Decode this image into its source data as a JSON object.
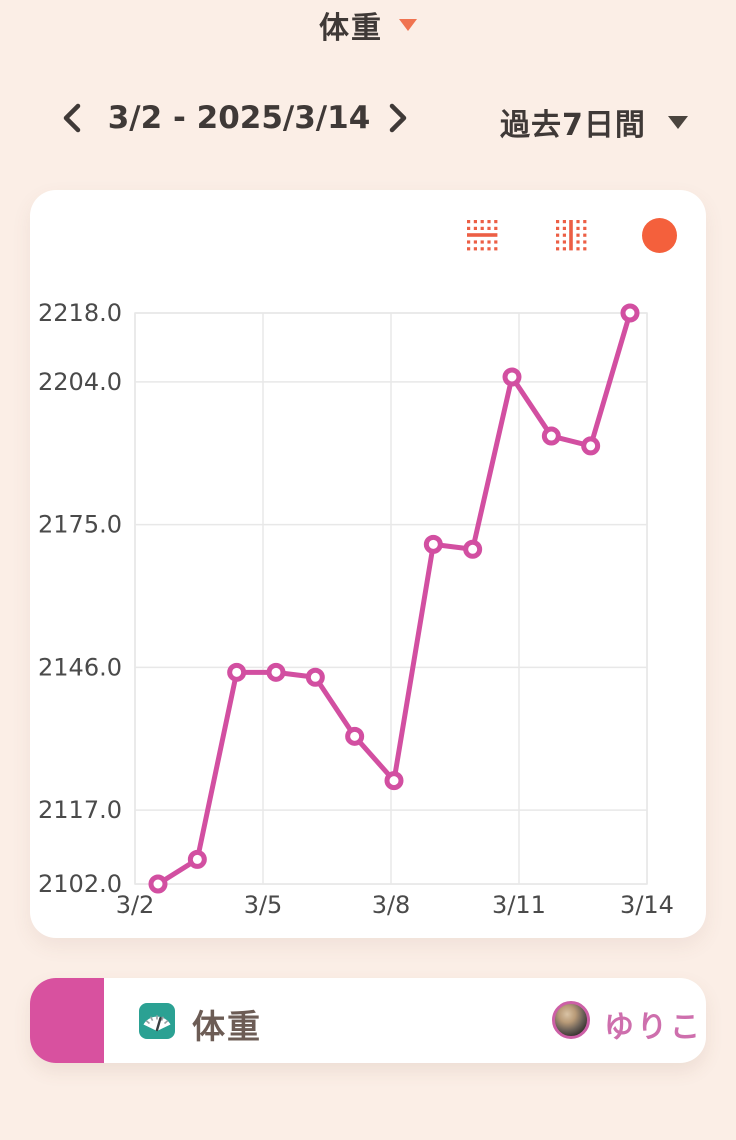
{
  "header": {
    "title": "体重"
  },
  "nav": {
    "date_range": "3/2 - 2025/3/14",
    "period_label": "過去7日間"
  },
  "toolbar": {
    "icons": [
      "horizontal-gridlines-icon",
      "vertical-gridlines-icon",
      "series-color-dot"
    ],
    "series_dot_color": "#F4603C"
  },
  "chart_data": {
    "type": "line",
    "title": "体重",
    "x": [
      "3/2",
      "3/3",
      "3/4",
      "3/5",
      "3/6",
      "3/7",
      "3/8",
      "3/9",
      "3/10",
      "3/11",
      "3/12",
      "3/13",
      "3/14"
    ],
    "series": [
      {
        "name": "体重",
        "color": "#D24FA1",
        "values": [
          2102,
          2107,
          2145,
          2145,
          2144,
          2132,
          2123,
          2171,
          2170,
          2205,
          2193,
          2191,
          2218
        ]
      }
    ],
    "x_tick_labels": [
      "3/2",
      "3/5",
      "3/8",
      "3/11",
      "3/14"
    ],
    "y_ticks": [
      2102,
      2117,
      2146,
      2175,
      2204,
      2218
    ],
    "y_tick_labels": [
      "2102.0",
      "2117.0",
      "2146.0",
      "2175.0",
      "2204.0",
      "2218.0"
    ],
    "ylim": [
      2102,
      2218
    ],
    "grid": true,
    "legend_position": "none",
    "marker": "open-circle"
  },
  "footer": {
    "metric_label": "体重",
    "metric_icon": "weight-scale-icon",
    "user_name": "ゆりこ",
    "avatar": "cat-photo-avatar",
    "accent_color": "#D8519F"
  },
  "colors": {
    "background": "#FBEEE6",
    "card": "#FFFFFF",
    "line_pink": "#D24FA1",
    "accent_orange": "#EC5F45",
    "grid": "#E8E8E8",
    "text_dark": "#3F3937",
    "tick_text": "#4A4A4A"
  }
}
